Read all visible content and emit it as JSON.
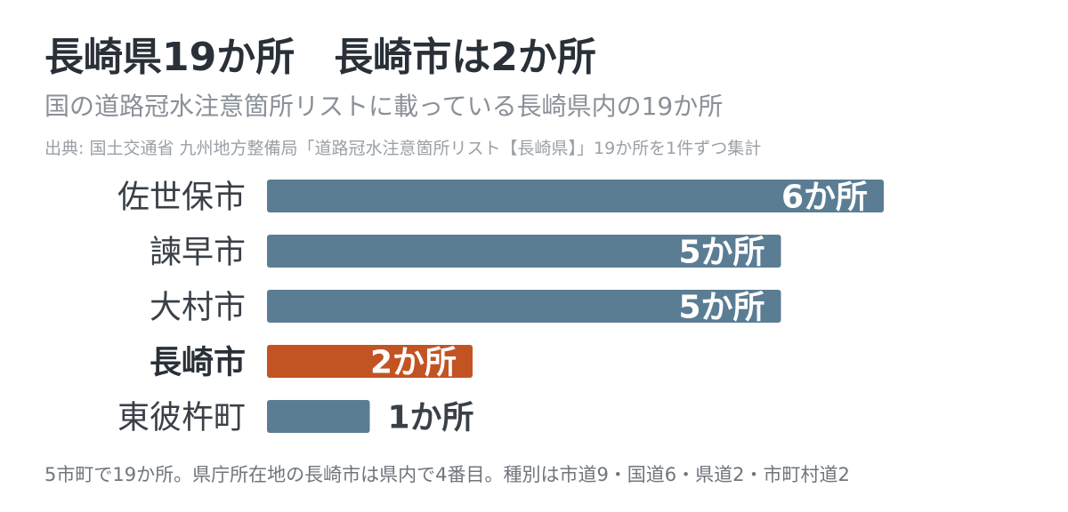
{
  "header": {
    "title": "長崎県19か所　長崎市は2か所",
    "subtitle": "国の道路冠水注意箇所リストに載っている長崎県内の19か所",
    "source": "出典: 国土交通省 九州地方整備局「道路冠水注意箇所リスト【長崎県】」19か所を1件ずつ集計"
  },
  "footnote": "5市町で19か所。県庁所在地の長崎市は県内で4番目。種別は市道9・国道6・県道2・市町村道2",
  "colors": {
    "bar": "#5b7d94",
    "highlight": "#c25424",
    "value_inside": "#ffffff",
    "value_outside": "#3a4048"
  },
  "chart_data": {
    "type": "bar",
    "orientation": "horizontal",
    "categories": [
      "佐世保市",
      "諫早市",
      "大村市",
      "長崎市",
      "東彼杵町"
    ],
    "values": [
      6,
      5,
      5,
      2,
      1
    ],
    "value_labels": [
      "6か所",
      "5か所",
      "5か所",
      "2か所",
      "1か所"
    ],
    "highlight_category": "長崎市",
    "xlim": [
      0,
      6
    ],
    "title": "",
    "xlabel": "",
    "ylabel": "",
    "grid": false,
    "legend": "none"
  }
}
